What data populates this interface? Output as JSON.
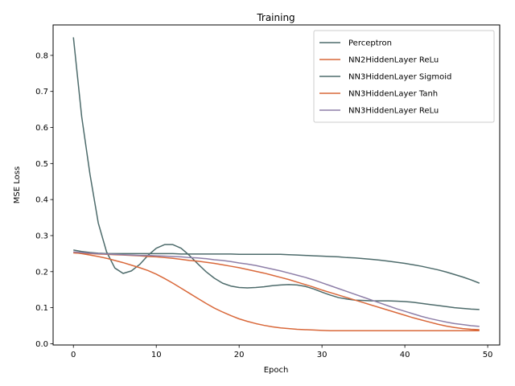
{
  "chart_data": {
    "type": "line",
    "title": "Training",
    "xlabel": "Epoch",
    "ylabel": "MSE Loss",
    "xlim": [
      -2.45,
      51.45
    ],
    "ylim": [
      -0.0035,
      0.8845
    ],
    "xticks": [
      0,
      10,
      20,
      30,
      40,
      50
    ],
    "yticks": [
      0.0,
      0.1,
      0.2,
      0.3,
      0.4,
      0.5,
      0.6,
      0.7,
      0.8
    ],
    "ytick_labels": [
      "0.0",
      "0.1",
      "0.2",
      "0.3",
      "0.4",
      "0.5",
      "0.6",
      "0.7",
      "0.8"
    ],
    "grid": false,
    "legend_position": "top-right",
    "x": [
      0,
      1,
      2,
      3,
      4,
      5,
      6,
      7,
      8,
      9,
      10,
      11,
      12,
      13,
      14,
      15,
      16,
      17,
      18,
      19,
      20,
      21,
      22,
      23,
      24,
      25,
      26,
      27,
      28,
      29,
      30,
      31,
      32,
      33,
      34,
      35,
      36,
      37,
      38,
      39,
      40,
      41,
      42,
      43,
      44,
      45,
      46,
      47,
      48,
      49
    ],
    "series": [
      {
        "name": "Perceptron",
        "color": "#4d6b6b",
        "values": [
          0.85,
          0.63,
          0.47,
          0.335,
          0.255,
          0.21,
          0.195,
          0.202,
          0.22,
          0.245,
          0.265,
          0.275,
          0.275,
          0.265,
          0.245,
          0.222,
          0.2,
          0.182,
          0.168,
          0.16,
          0.156,
          0.155,
          0.156,
          0.158,
          0.161,
          0.163,
          0.164,
          0.163,
          0.159,
          0.152,
          0.143,
          0.135,
          0.128,
          0.124,
          0.121,
          0.12,
          0.119,
          0.119,
          0.119,
          0.118,
          0.117,
          0.115,
          0.112,
          0.109,
          0.106,
          0.103,
          0.1,
          0.098,
          0.096,
          0.095
        ]
      },
      {
        "name": "NN2HiddenLayer ReLu",
        "color": "#d9683a",
        "values": [
          0.253,
          0.25,
          0.246,
          0.242,
          0.237,
          0.231,
          0.225,
          0.218,
          0.211,
          0.203,
          0.193,
          0.181,
          0.168,
          0.154,
          0.14,
          0.126,
          0.112,
          0.099,
          0.088,
          0.078,
          0.069,
          0.062,
          0.056,
          0.051,
          0.047,
          0.044,
          0.042,
          0.04,
          0.039,
          0.038,
          0.037,
          0.036,
          0.036,
          0.036,
          0.036,
          0.036,
          0.036,
          0.036,
          0.036,
          0.036,
          0.036,
          0.036,
          0.036,
          0.036,
          0.036,
          0.036,
          0.036,
          0.036,
          0.036,
          0.036
        ]
      },
      {
        "name": "NN3HiddenLayer Sigmoid",
        "color": "#4d6b6b",
        "values": [
          0.26,
          0.256,
          0.253,
          0.251,
          0.25,
          0.25,
          0.25,
          0.25,
          0.25,
          0.25,
          0.25,
          0.25,
          0.25,
          0.249,
          0.249,
          0.249,
          0.249,
          0.249,
          0.249,
          0.249,
          0.248,
          0.248,
          0.248,
          0.248,
          0.248,
          0.248,
          0.247,
          0.246,
          0.245,
          0.244,
          0.243,
          0.242,
          0.241,
          0.239,
          0.238,
          0.236,
          0.234,
          0.232,
          0.229,
          0.226,
          0.223,
          0.219,
          0.215,
          0.21,
          0.205,
          0.199,
          0.192,
          0.185,
          0.177,
          0.168
        ]
      },
      {
        "name": "NN3HiddenLayer Tanh",
        "color": "#d9683a",
        "values": [
          0.252,
          0.251,
          0.25,
          0.249,
          0.248,
          0.247,
          0.246,
          0.245,
          0.244,
          0.242,
          0.241,
          0.239,
          0.237,
          0.234,
          0.231,
          0.229,
          0.226,
          0.223,
          0.219,
          0.215,
          0.211,
          0.206,
          0.201,
          0.196,
          0.19,
          0.184,
          0.178,
          0.171,
          0.164,
          0.157,
          0.149,
          0.142,
          0.135,
          0.128,
          0.121,
          0.114,
          0.107,
          0.1,
          0.093,
          0.086,
          0.079,
          0.072,
          0.066,
          0.06,
          0.054,
          0.049,
          0.045,
          0.042,
          0.04,
          0.039
        ]
      },
      {
        "name": "NN3HiddenLayer ReLu",
        "color": "#8e7fa8",
        "values": [
          0.255,
          0.253,
          0.251,
          0.25,
          0.249,
          0.248,
          0.247,
          0.246,
          0.245,
          0.245,
          0.244,
          0.243,
          0.242,
          0.241,
          0.239,
          0.238,
          0.236,
          0.233,
          0.231,
          0.228,
          0.224,
          0.221,
          0.217,
          0.212,
          0.207,
          0.202,
          0.196,
          0.19,
          0.184,
          0.177,
          0.169,
          0.161,
          0.153,
          0.145,
          0.137,
          0.129,
          0.121,
          0.113,
          0.105,
          0.097,
          0.09,
          0.083,
          0.076,
          0.07,
          0.065,
          0.06,
          0.056,
          0.053,
          0.05,
          0.048
        ]
      }
    ]
  }
}
